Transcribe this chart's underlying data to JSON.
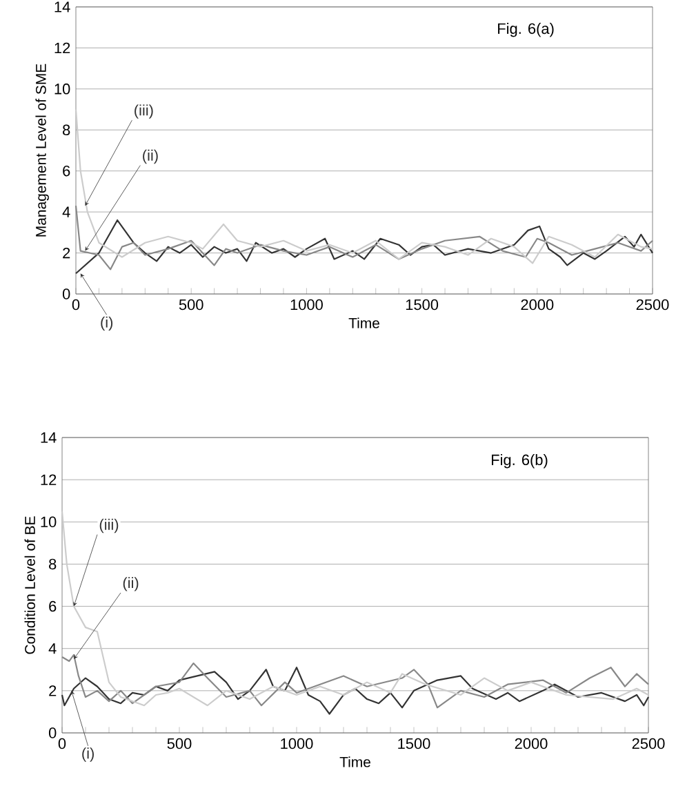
{
  "chart_data": [
    {
      "type": "line",
      "title": "Fig. 6(a)",
      "xlabel": "Time",
      "ylabel": "Management Level of SME",
      "xlim": [
        0,
        2500
      ],
      "ylim": [
        0,
        14
      ],
      "grid": "y",
      "xticks": [
        0,
        {
          "value": 100,
          "label": null
        },
        {
          "value": 200,
          "label": null
        },
        {
          "value": 300,
          "label": null
        },
        {
          "value": 400,
          "label": null
        },
        500,
        {
          "value": 600,
          "label": null
        },
        {
          "value": 700,
          "label": null
        },
        {
          "value": 800,
          "label": null
        },
        {
          "value": 900,
          "label": null
        },
        1000,
        {
          "value": 1100,
          "label": null
        },
        {
          "value": 1200,
          "label": null
        },
        {
          "value": 1300,
          "label": null
        },
        {
          "value": 1400,
          "label": null
        },
        1500,
        {
          "value": 1600,
          "label": null
        },
        {
          "value": 1700,
          "label": null
        },
        {
          "value": 1800,
          "label": null
        },
        {
          "value": 1900,
          "label": null
        },
        2000,
        {
          "value": 2100,
          "label": null
        },
        {
          "value": 2200,
          "label": null
        },
        {
          "value": 2300,
          "label": null
        },
        {
          "value": 2400,
          "label": null
        },
        2500
      ],
      "yticks": [
        0,
        2,
        4,
        6,
        8,
        10,
        12,
        14
      ],
      "series": [
        {
          "color": "#333333",
          "x": [
            0,
            50,
            100,
            180,
            250,
            300,
            350,
            400,
            450,
            500,
            550,
            600,
            650,
            700,
            740,
            780,
            850,
            900,
            950,
            1000,
            1080,
            1120,
            1200,
            1250,
            1320,
            1400,
            1450,
            1500,
            1550,
            1600,
            1700,
            1800,
            1900,
            1960,
            2010,
            2050,
            2100,
            2130,
            2200,
            2250,
            2300,
            2380,
            2420,
            2450,
            2500
          ],
          "values": [
            1,
            1.5,
            2,
            3.6,
            2.5,
            2,
            1.6,
            2.3,
            2,
            2.4,
            1.8,
            2.3,
            2,
            2.2,
            1.6,
            2.5,
            2,
            2.2,
            1.8,
            2.2,
            2.7,
            1.7,
            2.1,
            1.7,
            2.7,
            2.4,
            1.9,
            2.3,
            2.4,
            1.9,
            2.2,
            2,
            2.4,
            3.1,
            3.3,
            2.2,
            1.8,
            1.4,
            2,
            1.7,
            2.1,
            2.8,
            2.3,
            2.9,
            2
          ]
        },
        {
          "color": "#888888",
          "x": [
            0,
            20,
            100,
            150,
            200,
            250,
            300,
            400,
            500,
            600,
            650,
            700,
            800,
            900,
            1000,
            1100,
            1200,
            1300,
            1400,
            1500,
            1600,
            1750,
            1850,
            1950,
            2000,
            2050,
            2150,
            2250,
            2350,
            2450,
            2500
          ],
          "values": [
            4.3,
            2.1,
            1.9,
            1.2,
            2.3,
            2.5,
            1.9,
            2.2,
            2.6,
            1.4,
            2.2,
            2,
            2.4,
            2.1,
            1.9,
            2.3,
            1.8,
            2.4,
            1.7,
            2.2,
            2.6,
            2.8,
            2.1,
            1.8,
            2.7,
            2.5,
            1.9,
            2.2,
            2.5,
            2.1,
            2.6
          ]
        },
        {
          "color": "#cccccc",
          "x": [
            0,
            20,
            50,
            100,
            200,
            300,
            400,
            500,
            550,
            640,
            700,
            800,
            900,
            1000,
            1100,
            1200,
            1300,
            1400,
            1500,
            1600,
            1700,
            1800,
            1900,
            1980,
            2050,
            2150,
            2250,
            2350,
            2450,
            2500
          ],
          "values": [
            9,
            6,
            4,
            2.5,
            1.8,
            2.5,
            2.8,
            2.5,
            2.2,
            3.4,
            2.6,
            2.3,
            2.6,
            2.1,
            2.4,
            2,
            2.6,
            1.7,
            2.5,
            2.3,
            1.9,
            2.7,
            2.3,
            1.5,
            2.8,
            2.4,
            1.8,
            2.9,
            2.3,
            2.2
          ]
        }
      ],
      "annotations": [
        {
          "text": "(i)",
          "x": 20,
          "y": 1
        },
        {
          "text": "(ii)",
          "x": 40,
          "y": 2.1
        },
        {
          "text": "(iii)",
          "x": 40,
          "y": 4.3
        }
      ]
    },
    {
      "type": "line",
      "title": "Fig. 6(b)",
      "xlabel": "Time",
      "ylabel": "Condition Level of BE",
      "xlim": [
        0,
        2500
      ],
      "ylim": [
        0,
        14
      ],
      "grid": "y",
      "xticks": [
        0,
        {
          "value": 100,
          "label": null
        },
        {
          "value": 200,
          "label": null
        },
        {
          "value": 300,
          "label": null
        },
        {
          "value": 400,
          "label": null
        },
        500,
        {
          "value": 600,
          "label": null
        },
        {
          "value": 700,
          "label": null
        },
        {
          "value": 800,
          "label": null
        },
        {
          "value": 900,
          "label": null
        },
        1000,
        {
          "value": 1100,
          "label": null
        },
        {
          "value": 1200,
          "label": null
        },
        {
          "value": 1300,
          "label": null
        },
        {
          "value": 1400,
          "label": null
        },
        1500,
        {
          "value": 1600,
          "label": null
        },
        {
          "value": 1700,
          "label": null
        },
        {
          "value": 1800,
          "label": null
        },
        {
          "value": 1900,
          "label": null
        },
        2000,
        {
          "value": 2100,
          "label": null
        },
        {
          "value": 2200,
          "label": null
        },
        {
          "value": 2300,
          "label": null
        },
        {
          "value": 2400,
          "label": null
        },
        2500
      ],
      "yticks": [
        0,
        2,
        4,
        6,
        8,
        10,
        12,
        14
      ],
      "series": [
        {
          "color": "#333333",
          "x": [
            0,
            10,
            50,
            100,
            150,
            200,
            250,
            300,
            350,
            400,
            450,
            500,
            650,
            700,
            750,
            800,
            870,
            900,
            950,
            1000,
            1050,
            1100,
            1140,
            1200,
            1250,
            1300,
            1350,
            1400,
            1450,
            1500,
            1600,
            1700,
            1750,
            1850,
            1900,
            1950,
            2050,
            2100,
            2200,
            2300,
            2400,
            2450,
            2480,
            2500
          ],
          "values": [
            1.8,
            1.3,
            2.1,
            2.6,
            2.2,
            1.6,
            1.4,
            1.9,
            1.8,
            2.2,
            2,
            2.5,
            2.9,
            2.4,
            1.6,
            2,
            3,
            2.2,
            2,
            3.1,
            1.8,
            1.5,
            0.9,
            1.8,
            2.1,
            1.6,
            1.4,
            1.9,
            1.2,
            2,
            2.5,
            2.7,
            2.1,
            1.6,
            1.9,
            1.5,
            2,
            2.3,
            1.7,
            1.9,
            1.5,
            1.8,
            1.3,
            1.7
          ]
        },
        {
          "color": "#888888",
          "x": [
            0,
            30,
            50,
            70,
            100,
            150,
            200,
            250,
            300,
            400,
            500,
            560,
            620,
            700,
            800,
            850,
            950,
            1000,
            1100,
            1200,
            1300,
            1450,
            1500,
            1560,
            1600,
            1700,
            1800,
            1900,
            2050,
            2150,
            2250,
            2340,
            2400,
            2450,
            2500
          ],
          "values": [
            3.6,
            3.4,
            3.7,
            2.7,
            1.7,
            2,
            1.5,
            2,
            1.4,
            2.2,
            2.4,
            3.3,
            2.6,
            1.7,
            2,
            1.3,
            2.4,
            1.9,
            2.3,
            2.7,
            2.2,
            2.6,
            3,
            2.3,
            1.2,
            2,
            1.7,
            2.3,
            2.5,
            1.9,
            2.6,
            3.1,
            2.2,
            2.8,
            2.3
          ]
        },
        {
          "color": "#cccccc",
          "x": [
            0,
            20,
            50,
            100,
            150,
            200,
            250,
            350,
            400,
            450,
            500,
            620,
            700,
            800,
            900,
            1000,
            1100,
            1200,
            1300,
            1400,
            1450,
            1550,
            1700,
            1800,
            1900,
            2000,
            2150,
            2350,
            2450,
            2500
          ],
          "values": [
            10.5,
            8,
            6,
            5,
            4.8,
            2.4,
            1.7,
            1.3,
            1.8,
            1.9,
            2.1,
            1.3,
            2,
            1.6,
            2.2,
            1.8,
            2.2,
            1.8,
            2.4,
            1.9,
            2.8,
            2.3,
            1.8,
            2.6,
            2,
            2.4,
            1.8,
            1.6,
            2.1,
            1.8
          ]
        }
      ],
      "annotations": [
        {
          "text": "(i)",
          "x": 40,
          "y": 2
        },
        {
          "text": "(ii)",
          "x": 50,
          "y": 3.5
        },
        {
          "text": "(iii)",
          "x": 50,
          "y": 6
        }
      ]
    }
  ]
}
